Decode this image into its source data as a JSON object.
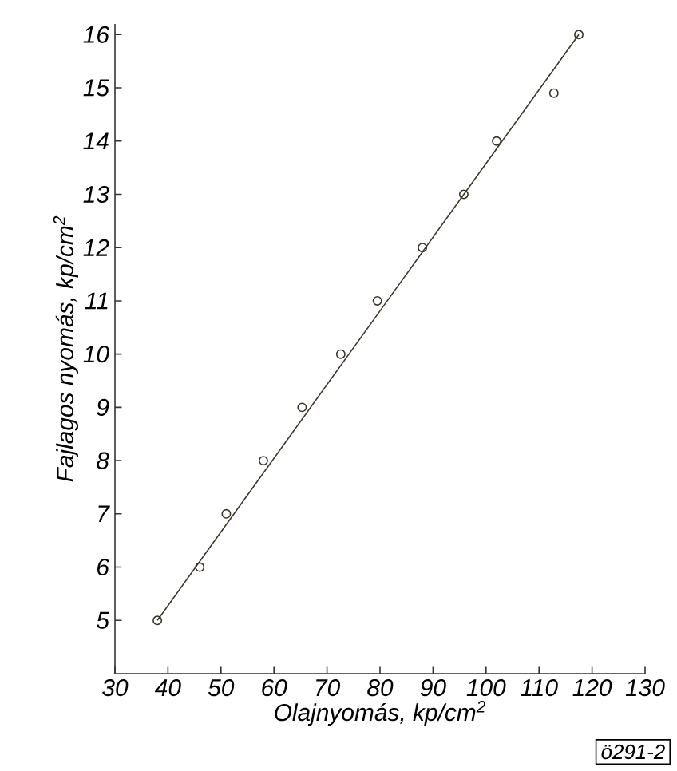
{
  "chart_data": {
    "type": "scatter",
    "xlabel": "Olajnyomás, kp/cm$^{2}$",
    "ylabel": "Fajlagos nyomás, kp/cm$^{2}$",
    "series": [
      {
        "color": "#3a3528",
        "marker": "circle",
        "x": [
          38,
          46,
          51,
          58,
          65.3,
          72.6,
          79.5,
          88,
          95.8,
          102,
          112.8,
          117.5
        ],
        "values": [
          5,
          6,
          7,
          8,
          9,
          10,
          11,
          12,
          13,
          14,
          14.9,
          16
        ]
      },
      {
        "type": "line",
        "color": "#3a3528",
        "line_style": "solid",
        "x": [
          38,
          117.5
        ],
        "values": [
          5,
          16
        ]
      }
    ],
    "xlim": [
      30,
      130
    ],
    "ylim": [
      4,
      16.2
    ],
    "xticks": [
      30,
      40,
      50,
      60,
      70,
      80,
      90,
      100,
      110,
      120,
      130
    ],
    "yticks": [
      5,
      6,
      7,
      8,
      9,
      10,
      11,
      12,
      13,
      14,
      15,
      16
    ],
    "annotations": [
      "ö291-2"
    ]
  }
}
